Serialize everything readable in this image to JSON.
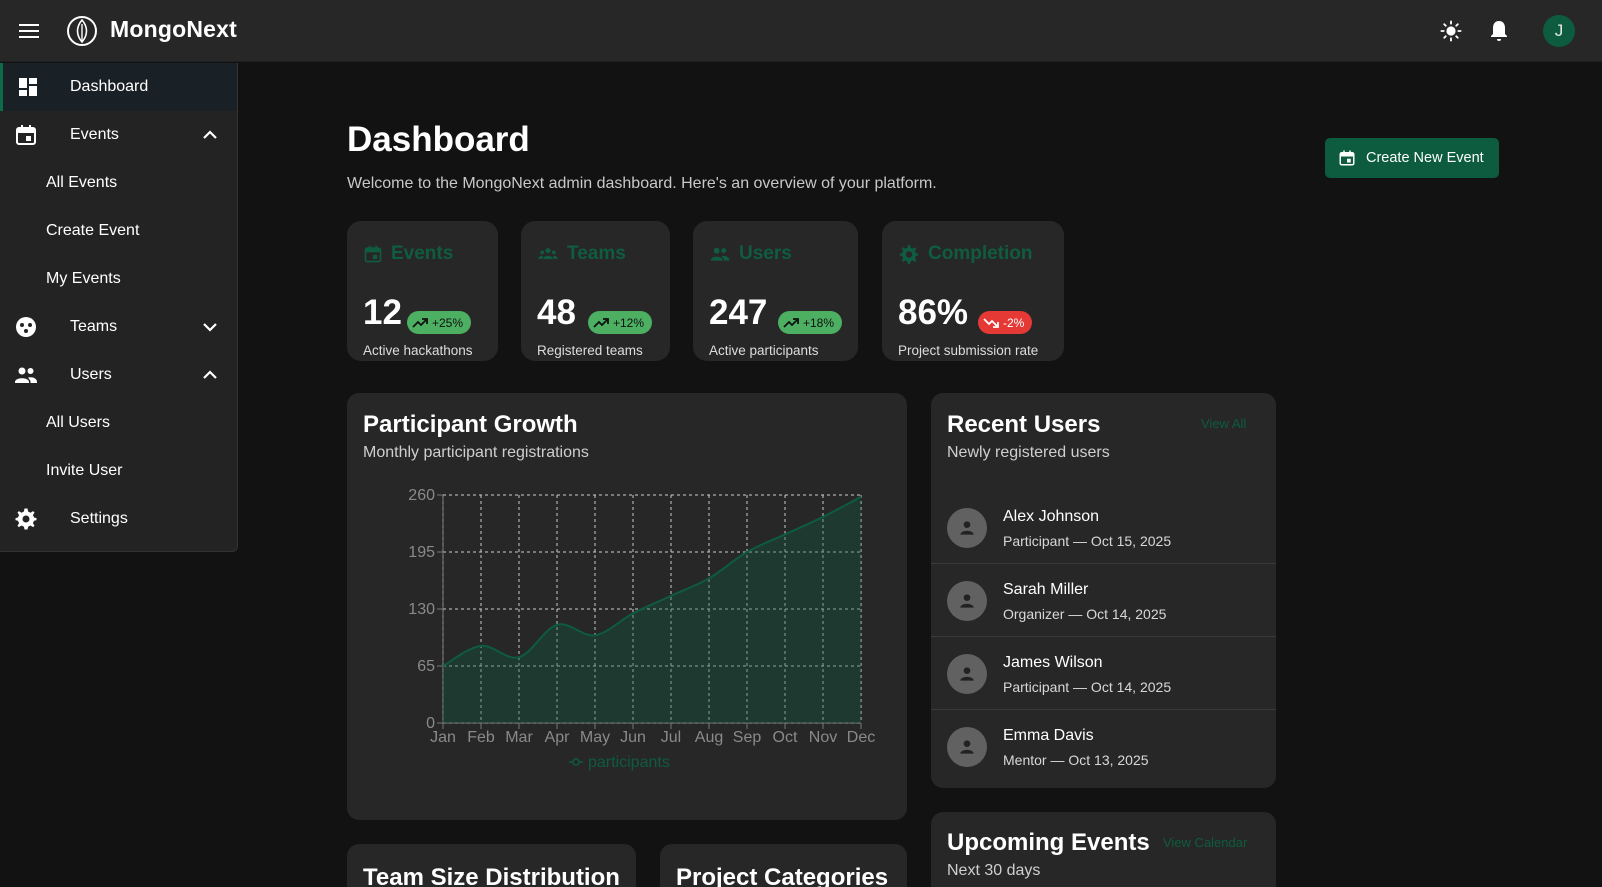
{
  "app": {
    "title": "MongoNext",
    "avatar_initial": "J",
    "accent": "#0d5c3f"
  },
  "sidebar": {
    "items": [
      {
        "label": "Dashboard"
      },
      {
        "label": "Events"
      },
      {
        "label": "All Events"
      },
      {
        "label": "Create Event"
      },
      {
        "label": "My Events"
      },
      {
        "label": "Teams"
      },
      {
        "label": "Users"
      },
      {
        "label": "All Users"
      },
      {
        "label": "Invite User"
      },
      {
        "label": "Settings"
      }
    ]
  },
  "header": {
    "title": "Dashboard",
    "subtitle": "Welcome to the MongoNext admin dashboard. Here's an overview of your platform.",
    "create_button": "Create New Event"
  },
  "stats": [
    {
      "title": "Events",
      "value": "12",
      "change": "+25%",
      "trend": "up",
      "caption": "Active hackathons"
    },
    {
      "title": "Teams",
      "value": "48",
      "change": "+12%",
      "trend": "up",
      "caption": "Registered teams"
    },
    {
      "title": "Users",
      "value": "247",
      "change": "+18%",
      "trend": "up",
      "caption": "Active participants"
    },
    {
      "title": "Completion",
      "value": "86%",
      "change": "-2%",
      "trend": "down",
      "caption": "Project submission rate"
    }
  ],
  "growth": {
    "title": "Participant Growth",
    "subtitle": "Monthly participant registrations"
  },
  "chart_data": {
    "type": "area",
    "categories": [
      "Jan",
      "Feb",
      "Mar",
      "Apr",
      "May",
      "Jun",
      "Jul",
      "Aug",
      "Sep",
      "Oct",
      "Nov",
      "Dec"
    ],
    "series": [
      {
        "name": "participants",
        "values": [
          65,
          88,
          75,
          112,
          100,
          125,
          145,
          165,
          195,
          215,
          235,
          258
        ]
      }
    ],
    "yticks": [
      0,
      65,
      130,
      195,
      260
    ],
    "ylim": [
      0,
      260
    ],
    "grid": true,
    "legend": "bottom",
    "color": "#0d5c3f"
  },
  "recent_users": {
    "title": "Recent Users",
    "subtitle": "Newly registered users",
    "link": "View All",
    "items": [
      {
        "name": "Alex Johnson",
        "role": "Participant",
        "date": " — Oct 15, 2025"
      },
      {
        "name": "Sarah Miller",
        "role": "Organizer",
        "date": " — Oct 14, 2025"
      },
      {
        "name": "James Wilson",
        "role": "Participant",
        "date": " — Oct 14, 2025"
      },
      {
        "name": "Emma Davis",
        "role": "Mentor",
        "date": " — Oct 13, 2025"
      }
    ]
  },
  "upcoming": {
    "title": "Upcoming Events",
    "subtitle": "Next 30 days",
    "link": "View Calendar"
  },
  "team_size": {
    "title": "Team Size Distribution"
  },
  "project_categories": {
    "title": "Project Categories"
  }
}
